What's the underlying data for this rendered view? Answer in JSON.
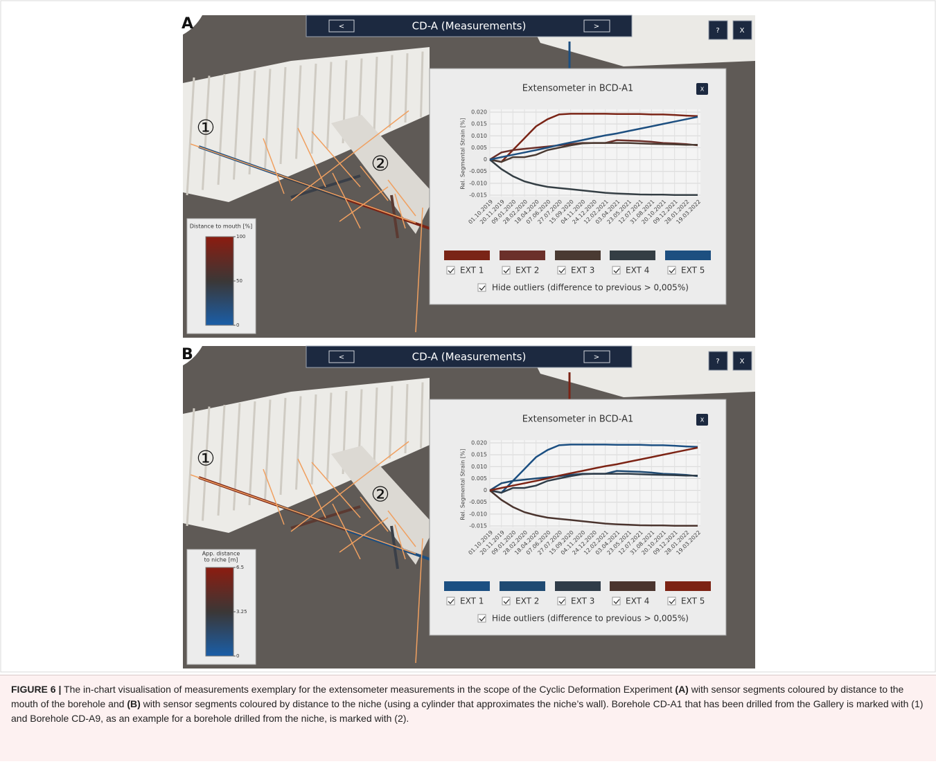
{
  "panels": [
    {
      "label": "A",
      "title": "CD-A (Measurements)",
      "prev_button": "<",
      "next_button": ">",
      "help_button": "?",
      "close_button": "X",
      "markers": [
        "①",
        "②"
      ],
      "colorbar": {
        "title_lines": [
          "Distance to mouth [%]"
        ],
        "lim": [
          0,
          100
        ],
        "ticks": [
          100,
          50,
          0
        ],
        "colors": [
          "#8c1c10",
          "#3b3736",
          "#1a5ea8"
        ]
      },
      "popup": {
        "title": "Extensometer in BCD-A1",
        "close_button": "X",
        "hide_outliers": "Hide outliers (difference to previous > 0,005%)",
        "chart_data": {
          "type": "line",
          "ylabel": "Rel. Segmental Strain [%]",
          "categories": [
            "01.10.2019",
            "20.11.2019",
            "09.01.2020",
            "28.02.2020",
            "18.04.2020",
            "07.06.2020",
            "27.07.2020",
            "15.09.2020",
            "04.11.2020",
            "24.12.2020",
            "12.02.2021",
            "03.04.2021",
            "23.05.2021",
            "12.07.2021",
            "31.08.2021",
            "20.10.2021",
            "09.12.2021",
            "28.01.2022",
            "19.03.2022"
          ],
          "ylim": [
            -0.015,
            0.02
          ],
          "yticks": [
            {
              "value": 0.02,
              "label": "0.020"
            },
            {
              "value": 0.015,
              "label": "0.015"
            },
            {
              "value": 0.01,
              "label": "0.010"
            },
            {
              "value": 0.005,
              "label": "0.005"
            },
            0,
            {
              "value": -0.005,
              "label": "-0.005"
            },
            {
              "value": -0.01,
              "label": "-0.010"
            },
            {
              "value": -0.015,
              "label": "-0.015"
            }
          ],
          "grid": true,
          "series": [
            {
              "name": "EXT 1",
              "color": "#7a2416",
              "values": [
                0,
                -0.001,
                0.004,
                0.009,
                0.014,
                0.017,
                0.019,
                0.0193,
                0.0193,
                0.0193,
                0.0193,
                0.0192,
                0.0192,
                0.0192,
                0.019,
                0.019,
                0.0188,
                0.0185,
                0.0183
              ]
            },
            {
              "name": "EXT 2",
              "color": "#6b302a",
              "values": [
                0,
                0.003,
                0.004,
                0.0045,
                0.005,
                0.0055,
                0.006,
                0.0065,
                0.007,
                0.007,
                0.007,
                0.0082,
                0.008,
                0.0078,
                0.0075,
                0.007,
                0.0068,
                0.0065,
                0.006
              ]
            },
            {
              "name": "EXT 3",
              "color": "#4a3a32",
              "values": [
                0,
                -0.001,
                0.001,
                0.001,
                0.002,
                0.004,
                0.005,
                0.006,
                0.0068,
                0.007,
                0.007,
                0.007,
                0.007,
                0.0068,
                0.0066,
                0.0065,
                0.0064,
                0.0062,
                0.0062
              ]
            },
            {
              "name": "EXT 4",
              "color": "#343e44",
              "values": [
                0,
                -0.004,
                -0.007,
                -0.0092,
                -0.0105,
                -0.0115,
                -0.012,
                -0.0125,
                -0.013,
                -0.0135,
                -0.014,
                -0.0143,
                -0.0145,
                -0.0147,
                -0.0148,
                -0.0148,
                -0.0149,
                -0.0149,
                -0.0149
              ]
            },
            {
              "name": "EXT 5",
              "color": "#1d4f80",
              "values": [
                0,
                0.001,
                0.002,
                0.003,
                0.004,
                0.005,
                0.0062,
                0.0072,
                0.0082,
                0.0092,
                0.0102,
                0.011,
                0.012,
                0.013,
                0.014,
                0.015,
                0.016,
                0.017,
                0.018
              ]
            }
          ]
        }
      }
    },
    {
      "label": "B",
      "title": "CD-A (Measurements)",
      "prev_button": "<",
      "next_button": ">",
      "help_button": "?",
      "close_button": "X",
      "markers": [
        "①",
        "②"
      ],
      "colorbar": {
        "title_lines": [
          "App. distance",
          "to niche [m]"
        ],
        "lim": [
          0,
          6.5
        ],
        "ticks": [
          6.5,
          3.25,
          0
        ],
        "colors": [
          "#8c1c10",
          "#3b3736",
          "#1a5ea8"
        ]
      },
      "popup": {
        "title": "Extensometer in BCD-A1",
        "close_button": "X",
        "hide_outliers": "Hide outliers (difference to previous > 0,005%)",
        "chart_data": {
          "type": "line",
          "ylabel": "Rel. Segmental Strain [%]",
          "categories": [
            "01.10.2019",
            "20.11.2019",
            "09.01.2020",
            "28.02.2020",
            "18.04.2020",
            "07.06.2020",
            "27.07.2020",
            "15.09.2020",
            "04.11.2020",
            "24.12.2020",
            "12.02.2021",
            "03.04.2021",
            "23.05.2021",
            "12.07.2021",
            "31.08.2021",
            "20.10.2021",
            "09.12.2021",
            "28.01.2022",
            "19.03.2022"
          ],
          "ylim": [
            -0.015,
            0.02
          ],
          "yticks": [
            {
              "value": 0.02,
              "label": "0.020"
            },
            {
              "value": 0.015,
              "label": "0.015"
            },
            {
              "value": 0.01,
              "label": "0.010"
            },
            {
              "value": 0.005,
              "label": "0.005"
            },
            0,
            {
              "value": -0.005,
              "label": "-0.005"
            },
            {
              "value": -0.01,
              "label": "-0.010"
            },
            {
              "value": -0.015,
              "label": "-0.015"
            }
          ],
          "grid": true,
          "series": [
            {
              "name": "EXT 1",
              "color": "#1b4f82",
              "values": [
                0,
                -0.001,
                0.004,
                0.009,
                0.014,
                0.017,
                0.019,
                0.0193,
                0.0193,
                0.0193,
                0.0193,
                0.0192,
                0.0192,
                0.0192,
                0.019,
                0.019,
                0.0188,
                0.0185,
                0.0183
              ]
            },
            {
              "name": "EXT 2",
              "color": "#1f4a72",
              "values": [
                0,
                0.003,
                0.004,
                0.0045,
                0.005,
                0.0055,
                0.006,
                0.0065,
                0.007,
                0.007,
                0.007,
                0.0082,
                0.008,
                0.0078,
                0.0075,
                0.007,
                0.0068,
                0.0065,
                0.006
              ]
            },
            {
              "name": "EXT 3",
              "color": "#2f3c48",
              "values": [
                0,
                -0.001,
                0.001,
                0.001,
                0.002,
                0.004,
                0.005,
                0.006,
                0.0068,
                0.007,
                0.007,
                0.007,
                0.007,
                0.0068,
                0.0066,
                0.0065,
                0.0064,
                0.0062,
                0.0062
              ]
            },
            {
              "name": "EXT 4",
              "color": "#4a342e",
              "values": [
                0,
                -0.004,
                -0.007,
                -0.0092,
                -0.0105,
                -0.0115,
                -0.012,
                -0.0125,
                -0.013,
                -0.0135,
                -0.014,
                -0.0143,
                -0.0145,
                -0.0147,
                -0.0148,
                -0.0148,
                -0.0149,
                -0.0149,
                -0.0149
              ]
            },
            {
              "name": "EXT 5",
              "color": "#7c2314",
              "values": [
                0,
                0.001,
                0.002,
                0.003,
                0.004,
                0.005,
                0.0062,
                0.0072,
                0.0082,
                0.0092,
                0.0102,
                0.011,
                0.012,
                0.013,
                0.014,
                0.015,
                0.016,
                0.017,
                0.018
              ]
            }
          ]
        }
      }
    }
  ],
  "caption": [
    {
      "text": "FIGURE 6 |",
      "bold": true
    },
    {
      "text": " The in-chart visualisation of measurements exemplary for the extensometer measurements in the scope of the Cyclic Deformation Experiment ",
      "bold": false
    },
    {
      "text": "(A)",
      "bold": true
    },
    {
      "text": " with sensor segments coloured by distance to the mouth of the borehole and ",
      "bold": false
    },
    {
      "text": "(B)",
      "bold": true
    },
    {
      "text": " with sensor segments coloured by distance to the niche (using a cylinder that approximates the niche’s wall). Borehole CD-A1 that has been drilled from the Gallery is marked with (1) and Borehole CD-A9, as an example for a borehole drilled from the niche, is marked with (2).",
      "bold": false
    }
  ]
}
